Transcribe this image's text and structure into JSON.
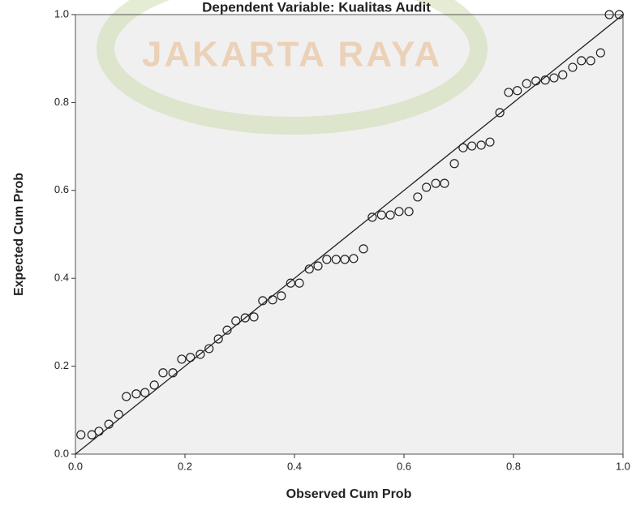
{
  "chart_data": {
    "type": "scatter",
    "title": "Dependent Variable: Kualitas Audit",
    "watermark": "JAKARTA RAYA",
    "x_label": "Observed Cum Prob",
    "y_label": "Expected Cum Prob",
    "xlim": [
      0,
      1
    ],
    "ylim": [
      0,
      1
    ],
    "xticks": [
      {
        "value": 0,
        "label": "0.0"
      },
      0.2,
      0.4,
      0.6,
      0.8,
      {
        "value": 1,
        "label": "1.0"
      }
    ],
    "yticks": [
      {
        "value": 0,
        "label": "0.0"
      },
      0.2,
      0.4,
      0.6,
      0.8,
      {
        "value": 1,
        "label": "1.0"
      }
    ],
    "color": "#222222",
    "x": [
      0.01,
      0.03,
      0.043,
      0.061,
      0.079,
      0.093,
      0.111,
      0.127,
      0.144,
      0.16,
      0.178,
      0.194,
      0.21,
      0.228,
      0.244,
      0.261,
      0.277,
      0.293,
      0.31,
      0.326,
      0.342,
      0.36,
      0.376,
      0.393,
      0.409,
      0.427,
      0.443,
      0.459,
      0.476,
      0.492,
      0.508,
      0.526,
      0.542,
      0.559,
      0.575,
      0.591,
      0.609,
      0.625,
      0.641,
      0.658,
      0.674,
      0.692,
      0.708,
      0.724,
      0.741,
      0.757,
      0.775,
      0.791,
      0.807,
      0.824,
      0.841,
      0.858,
      0.874,
      0.89,
      0.908,
      0.924,
      0.941,
      0.959,
      0.975,
      0.993
    ],
    "values": [
      0.044,
      0.044,
      0.052,
      0.068,
      0.09,
      0.131,
      0.137,
      0.14,
      0.157,
      0.185,
      0.185,
      0.216,
      0.22,
      0.227,
      0.24,
      0.262,
      0.282,
      0.303,
      0.31,
      0.312,
      0.349,
      0.351,
      0.36,
      0.389,
      0.389,
      0.421,
      0.428,
      0.443,
      0.443,
      0.443,
      0.445,
      0.467,
      0.539,
      0.544,
      0.544,
      0.552,
      0.552,
      0.585,
      0.607,
      0.616,
      0.616,
      0.661,
      0.697,
      0.701,
      0.703,
      0.71,
      0.777,
      0.823,
      0.827,
      0.843,
      0.849,
      0.851,
      0.856,
      0.863,
      0.88,
      0.895,
      0.895,
      0.913,
      1.0,
      1.0
    ]
  }
}
